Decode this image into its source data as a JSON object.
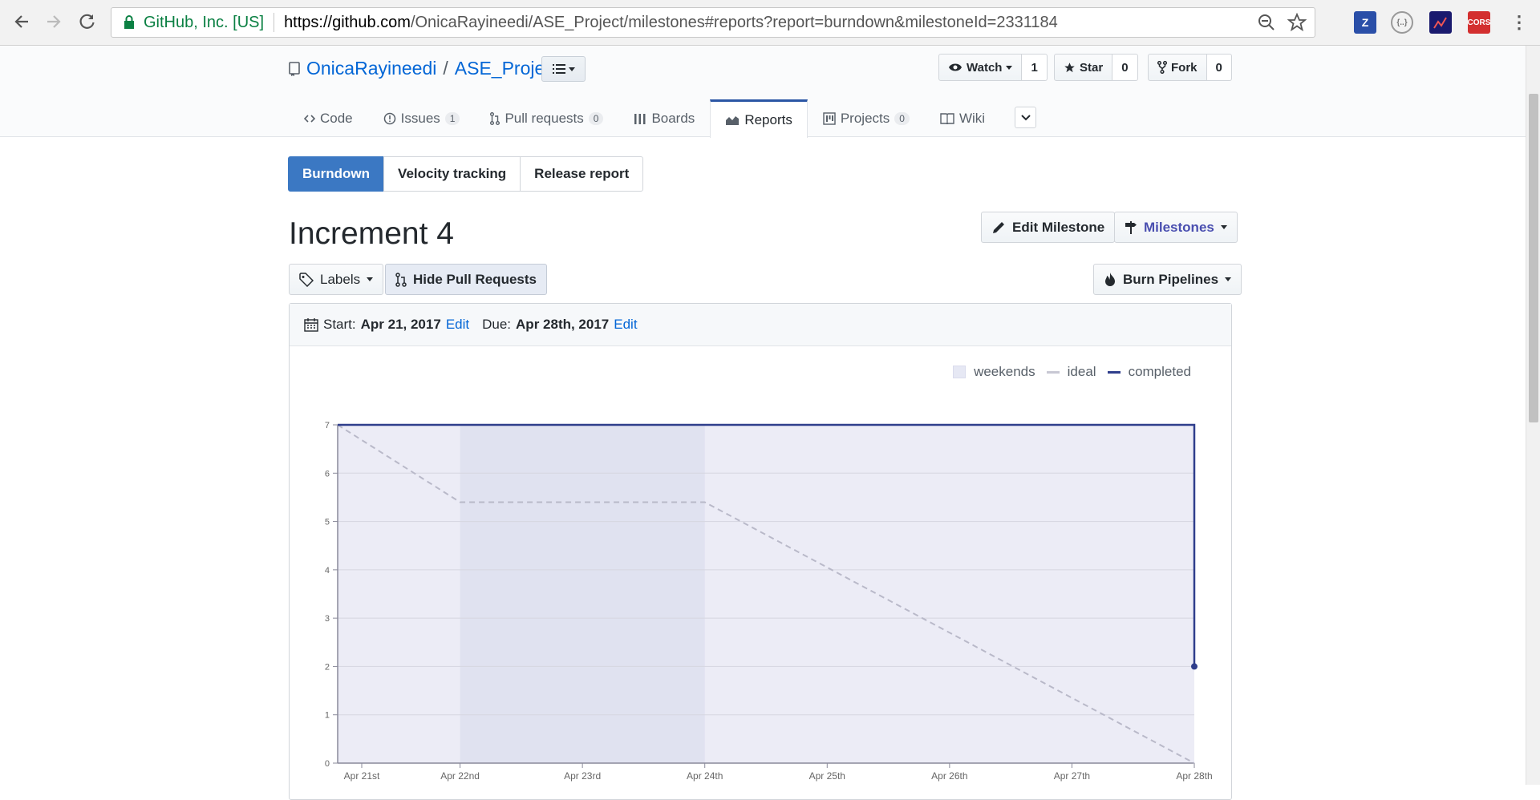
{
  "browser": {
    "site_name": "GitHub, Inc. [US]",
    "url_host": "https://github.com",
    "url_path": "/OnicaRayineedi/ASE_Project/milestones#reports?report=burndown&milestoneId=2331184",
    "extensions": [
      "Z",
      "{..}",
      "",
      "CORS"
    ]
  },
  "repo": {
    "owner": "OnicaRayineedi",
    "name": "ASE_Project",
    "watch_label": "Watch",
    "watch_count": "1",
    "star_label": "Star",
    "star_count": "0",
    "fork_label": "Fork",
    "fork_count": "0"
  },
  "tabs": [
    {
      "label": "Code",
      "icon": "code-icon"
    },
    {
      "label": "Issues",
      "badge": "1",
      "icon": "issue-icon"
    },
    {
      "label": "Pull requests",
      "badge": "0",
      "icon": "pull-request-icon"
    },
    {
      "label": "Boards",
      "icon": "boards-icon"
    },
    {
      "label": "Reports",
      "icon": "reports-icon",
      "active": true
    },
    {
      "label": "Projects",
      "badge": "0",
      "icon": "projects-icon"
    },
    {
      "label": "Wiki",
      "icon": "wiki-icon"
    }
  ],
  "report_tabs": [
    "Burndown",
    "Velocity tracking",
    "Release report"
  ],
  "milestone": {
    "title": "Increment 4",
    "edit_milestone": "Edit Milestone",
    "milestones": "Milestones",
    "labels": "Labels",
    "hide_pr": "Hide Pull Requests",
    "burn_pipelines": "Burn Pipelines",
    "start_label": "Start:",
    "start_date": "Apr 21, 2017",
    "due_label": "Due:",
    "due_date": "Apr 28th, 2017",
    "edit": "Edit"
  },
  "colors": {
    "accent": "#3b78c3",
    "completed": "#2f3e8c",
    "ideal": "#b9b9c9",
    "weekend": "#e0e2f0",
    "area": "#ececf6"
  },
  "chart_data": {
    "type": "line",
    "legend": [
      "weekends",
      "ideal",
      "completed"
    ],
    "legend_position": "top-right",
    "x": [
      "Apr 21st",
      "Apr 22nd",
      "Apr 23rd",
      "Apr 24th",
      "Apr 25th",
      "Apr 26th",
      "Apr 27th",
      "Apr 28th"
    ],
    "ylim": [
      0,
      7
    ],
    "yticks": [
      0,
      1,
      2,
      3,
      4,
      5,
      6,
      7
    ],
    "weekend_range": [
      "Apr 22nd",
      "Apr 24th"
    ],
    "series": [
      {
        "name": "ideal",
        "points": [
          [
            "Apr 21st",
            7
          ],
          [
            "Apr 22nd",
            5.4
          ],
          [
            "Apr 24th",
            5.4
          ],
          [
            "Apr 28th",
            0
          ]
        ]
      },
      {
        "name": "completed",
        "points": [
          [
            "Apr 21st",
            7
          ],
          [
            "Apr 28th",
            7
          ],
          [
            "Apr 28th",
            2
          ]
        ]
      }
    ]
  }
}
